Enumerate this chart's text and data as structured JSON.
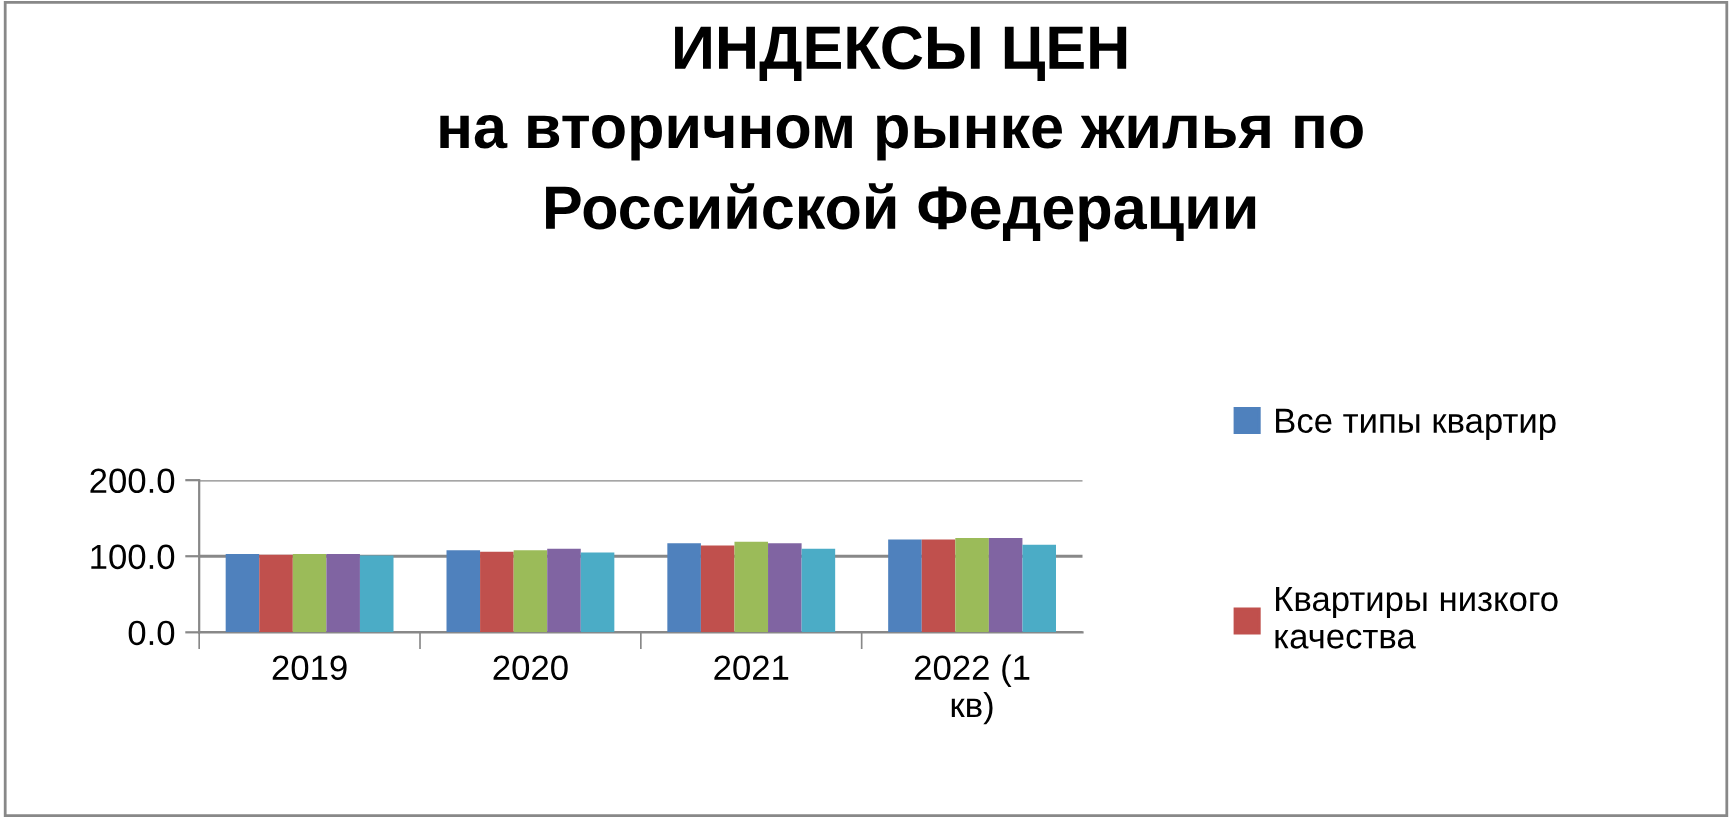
{
  "chart_data": {
    "type": "bar",
    "title": "ИНДЕКСЫ ЦЕН\nна вторичном рынке жилья по\nРоссийской Федерации",
    "categories": [
      "2019",
      "2020",
      "2021",
      "2022 (1\nкв)"
    ],
    "series": [
      {
        "name": "Все типы квартир",
        "color": "#4f81bd",
        "values": [
          103,
          108,
          117,
          122
        ]
      },
      {
        "name": "Квартиры низкого\nкачества",
        "color": "#c0504d",
        "values": [
          102,
          106,
          114,
          122
        ]
      },
      {
        "color": "#9bbb59",
        "values": [
          103,
          108,
          119,
          124
        ]
      },
      {
        "color": "#8064a2",
        "values": [
          103,
          110,
          117,
          124
        ]
      },
      {
        "color": "#4bacc6",
        "values": [
          101,
          105,
          110,
          115
        ]
      }
    ],
    "ylim": [
      0,
      200
    ],
    "yticks": [
      {
        "value": 0,
        "label": "0.0"
      },
      {
        "value": 100,
        "label": "100.0"
      },
      {
        "value": 200,
        "label": "200.0"
      }
    ],
    "grid": "y",
    "legend": "right"
  }
}
